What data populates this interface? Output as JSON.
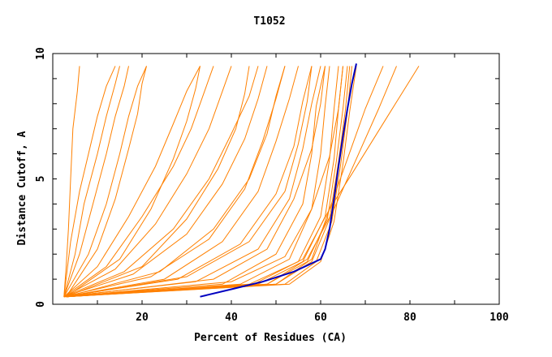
{
  "chart_data": {
    "type": "line",
    "title": "T1052",
    "xlabel": "Percent of Residues (CA)",
    "ylabel": "Distance Cutoff, A",
    "xlim": [
      0,
      100
    ],
    "ylim": [
      0,
      10
    ],
    "x_ticks": [
      {
        "value": 20,
        "label": "20"
      },
      {
        "value": 40,
        "label": "40"
      },
      {
        "value": 60,
        "label": "60"
      },
      {
        "value": 80,
        "label": "80"
      },
      {
        "value": 100,
        "label": "100"
      }
    ],
    "y_ticks": [
      {
        "value": 0,
        "label": "0"
      },
      {
        "value": 5,
        "label": "5"
      },
      {
        "value": 10,
        "label": "10"
      }
    ],
    "grid": false,
    "legend": "none",
    "colors": {
      "models": "#ff8000",
      "highlight": "#0000c0"
    },
    "series": [
      {
        "x": [
          2.5,
          3,
          3.5,
          4,
          4.5,
          5.5,
          6
        ],
        "y": [
          0.3,
          1.5,
          3,
          5,
          7,
          8.5,
          9.5
        ]
      },
      {
        "x": [
          2.5,
          4,
          6,
          8,
          10,
          12,
          14
        ],
        "y": [
          0.3,
          2.5,
          4.5,
          6,
          7.5,
          8.7,
          9.5
        ]
      },
      {
        "x": [
          2.5,
          5,
          7,
          10,
          12,
          14,
          15
        ],
        "y": [
          0.3,
          2,
          4,
          6,
          7.5,
          8.8,
          9.5
        ]
      },
      {
        "x": [
          2.5,
          6,
          9,
          12,
          14,
          16,
          17
        ],
        "y": [
          0.3,
          2,
          4,
          6,
          7.5,
          8.7,
          9.5
        ]
      },
      {
        "x": [
          2.5,
          8,
          12,
          15,
          17,
          19,
          21
        ],
        "y": [
          0.3,
          2,
          4,
          6,
          7.5,
          8.7,
          9.5
        ]
      },
      {
        "x": [
          2.5,
          10,
          17,
          23,
          27,
          30,
          33
        ],
        "y": [
          0.3,
          1.5,
          3.5,
          5.5,
          7.2,
          8.5,
          9.5
        ]
      },
      {
        "x": [
          2.5,
          12,
          20,
          27,
          31,
          34,
          36
        ],
        "y": [
          0.3,
          1.5,
          3.5,
          5.5,
          7,
          8.5,
          9.5
        ]
      },
      {
        "x": [
          2.5,
          14,
          23,
          30,
          35,
          38,
          40
        ],
        "y": [
          0.3,
          1.4,
          3.2,
          5.2,
          7,
          8.5,
          9.5
        ]
      },
      {
        "x": [
          2.5,
          16,
          27,
          35,
          40,
          44,
          46
        ],
        "y": [
          0.3,
          1.3,
          3,
          5,
          6.8,
          8.3,
          9.5
        ]
      },
      {
        "x": [
          2.5,
          18,
          30,
          38,
          43,
          46,
          48
        ],
        "y": [
          0.3,
          1.2,
          2.8,
          4.8,
          6.6,
          8.2,
          9.5
        ]
      },
      {
        "x": [
          2.5,
          22,
          35,
          43,
          47,
          50,
          52
        ],
        "y": [
          0.3,
          1.1,
          2.6,
          4.6,
          6.5,
          8.2,
          9.5
        ]
      },
      {
        "x": [
          2.5,
          25,
          38,
          46,
          50,
          53,
          55
        ],
        "y": [
          0.3,
          1,
          2.5,
          4.5,
          6.5,
          8.2,
          9.5
        ]
      },
      {
        "x": [
          2.5,
          28,
          42,
          50,
          54,
          56,
          58
        ],
        "y": [
          0.3,
          1,
          2.4,
          4.4,
          6.3,
          8.1,
          9.5
        ]
      },
      {
        "x": [
          2.5,
          32,
          46,
          53,
          56,
          58,
          60
        ],
        "y": [
          0.3,
          0.9,
          2.2,
          4.2,
          6.2,
          8,
          9.5
        ]
      },
      {
        "x": [
          2.5,
          38,
          50,
          56,
          58,
          59,
          61
        ],
        "y": [
          0.3,
          0.8,
          2,
          4,
          6,
          7.9,
          9.5
        ]
      },
      {
        "x": [
          2.5,
          42,
          53,
          58,
          60,
          61,
          62
        ],
        "y": [
          0.3,
          0.8,
          1.8,
          3.8,
          6,
          7.9,
          9.5
        ]
      },
      {
        "x": [
          3,
          44,
          55,
          60,
          62,
          63,
          64
        ],
        "y": [
          0.3,
          0.8,
          1.7,
          3.5,
          5.8,
          7.8,
          9.5
        ]
      },
      {
        "x": [
          3,
          46,
          56,
          61,
          63,
          64,
          65
        ],
        "y": [
          0.3,
          0.8,
          1.7,
          3.5,
          5.8,
          7.8,
          9.5
        ]
      },
      {
        "x": [
          3,
          48,
          57,
          61.5,
          63.5,
          65,
          66
        ],
        "y": [
          0.3,
          0.8,
          1.7,
          3.4,
          5.7,
          7.8,
          9.5
        ]
      },
      {
        "x": [
          3,
          50,
          58,
          62,
          64,
          65.5,
          66.5
        ],
        "y": [
          0.3,
          0.8,
          1.7,
          3.4,
          5.7,
          7.7,
          9.5
        ]
      },
      {
        "x": [
          3,
          52,
          59,
          62.5,
          64.5,
          66,
          67
        ],
        "y": [
          0.3,
          0.8,
          1.7,
          3.3,
          5.6,
          7.7,
          9.5
        ]
      },
      {
        "x": [
          3,
          53,
          60,
          63,
          65,
          66.5,
          68
        ],
        "y": [
          0.3,
          0.8,
          1.7,
          3.3,
          5.6,
          7.7,
          9.5
        ]
      },
      {
        "x": [
          3,
          45,
          56,
          62,
          66,
          70,
          74
        ],
        "y": [
          0.3,
          0.8,
          1.8,
          3.8,
          5.8,
          7.8,
          9.5
        ]
      },
      {
        "x": [
          3,
          48,
          57,
          63,
          68,
          73,
          77
        ],
        "y": [
          0.3,
          0.8,
          1.8,
          3.8,
          5.8,
          7.8,
          9.5
        ]
      },
      {
        "x": [
          3,
          50,
          58,
          62,
          67,
          75,
          82
        ],
        "y": [
          0.3,
          0.8,
          1.8,
          3.8,
          5.2,
          7.5,
          9.5
        ]
      },
      {
        "x": [
          3,
          40,
          52,
          58,
          62,
          64,
          65
        ],
        "y": [
          0.3,
          0.9,
          1.9,
          3.8,
          5.9,
          7.8,
          9.5
        ]
      },
      {
        "x": [
          3,
          36,
          48,
          54,
          58,
          60,
          61
        ],
        "y": [
          0.3,
          1,
          2.2,
          4.2,
          6.2,
          8,
          9.5
        ]
      },
      {
        "x": [
          3,
          30,
          44,
          52,
          55,
          57,
          58
        ],
        "y": [
          0.3,
          1.1,
          2.5,
          4.5,
          6.4,
          8.1,
          9.5
        ]
      },
      {
        "x": [
          3,
          24,
          36,
          44,
          48,
          50,
          52
        ],
        "y": [
          0.3,
          1.3,
          3,
          5,
          6.8,
          8.3,
          9.5
        ]
      },
      {
        "x": [
          3,
          20,
          30,
          37,
          41,
          43,
          44
        ],
        "y": [
          0.3,
          1.5,
          3.4,
          5.4,
          7,
          8.4,
          9.5
        ]
      },
      {
        "x": [
          3,
          15,
          22,
          27,
          30,
          32,
          33
        ],
        "y": [
          0.3,
          1.8,
          3.8,
          5.8,
          7.3,
          8.6,
          9.5
        ]
      },
      {
        "x": [
          3,
          10,
          14,
          17,
          19,
          20,
          21
        ],
        "y": [
          0.3,
          2.2,
          4.2,
          6.2,
          7.6,
          8.8,
          9.5
        ]
      }
    ],
    "highlight_series": {
      "x": [
        33,
        40,
        47,
        54,
        60,
        61,
        62,
        63,
        64,
        65,
        66,
        67,
        68
      ],
      "y": [
        0.3,
        0.6,
        0.9,
        1.3,
        1.8,
        2.2,
        3,
        4.2,
        5.5,
        6.7,
        7.8,
        8.8,
        9.6
      ]
    }
  }
}
